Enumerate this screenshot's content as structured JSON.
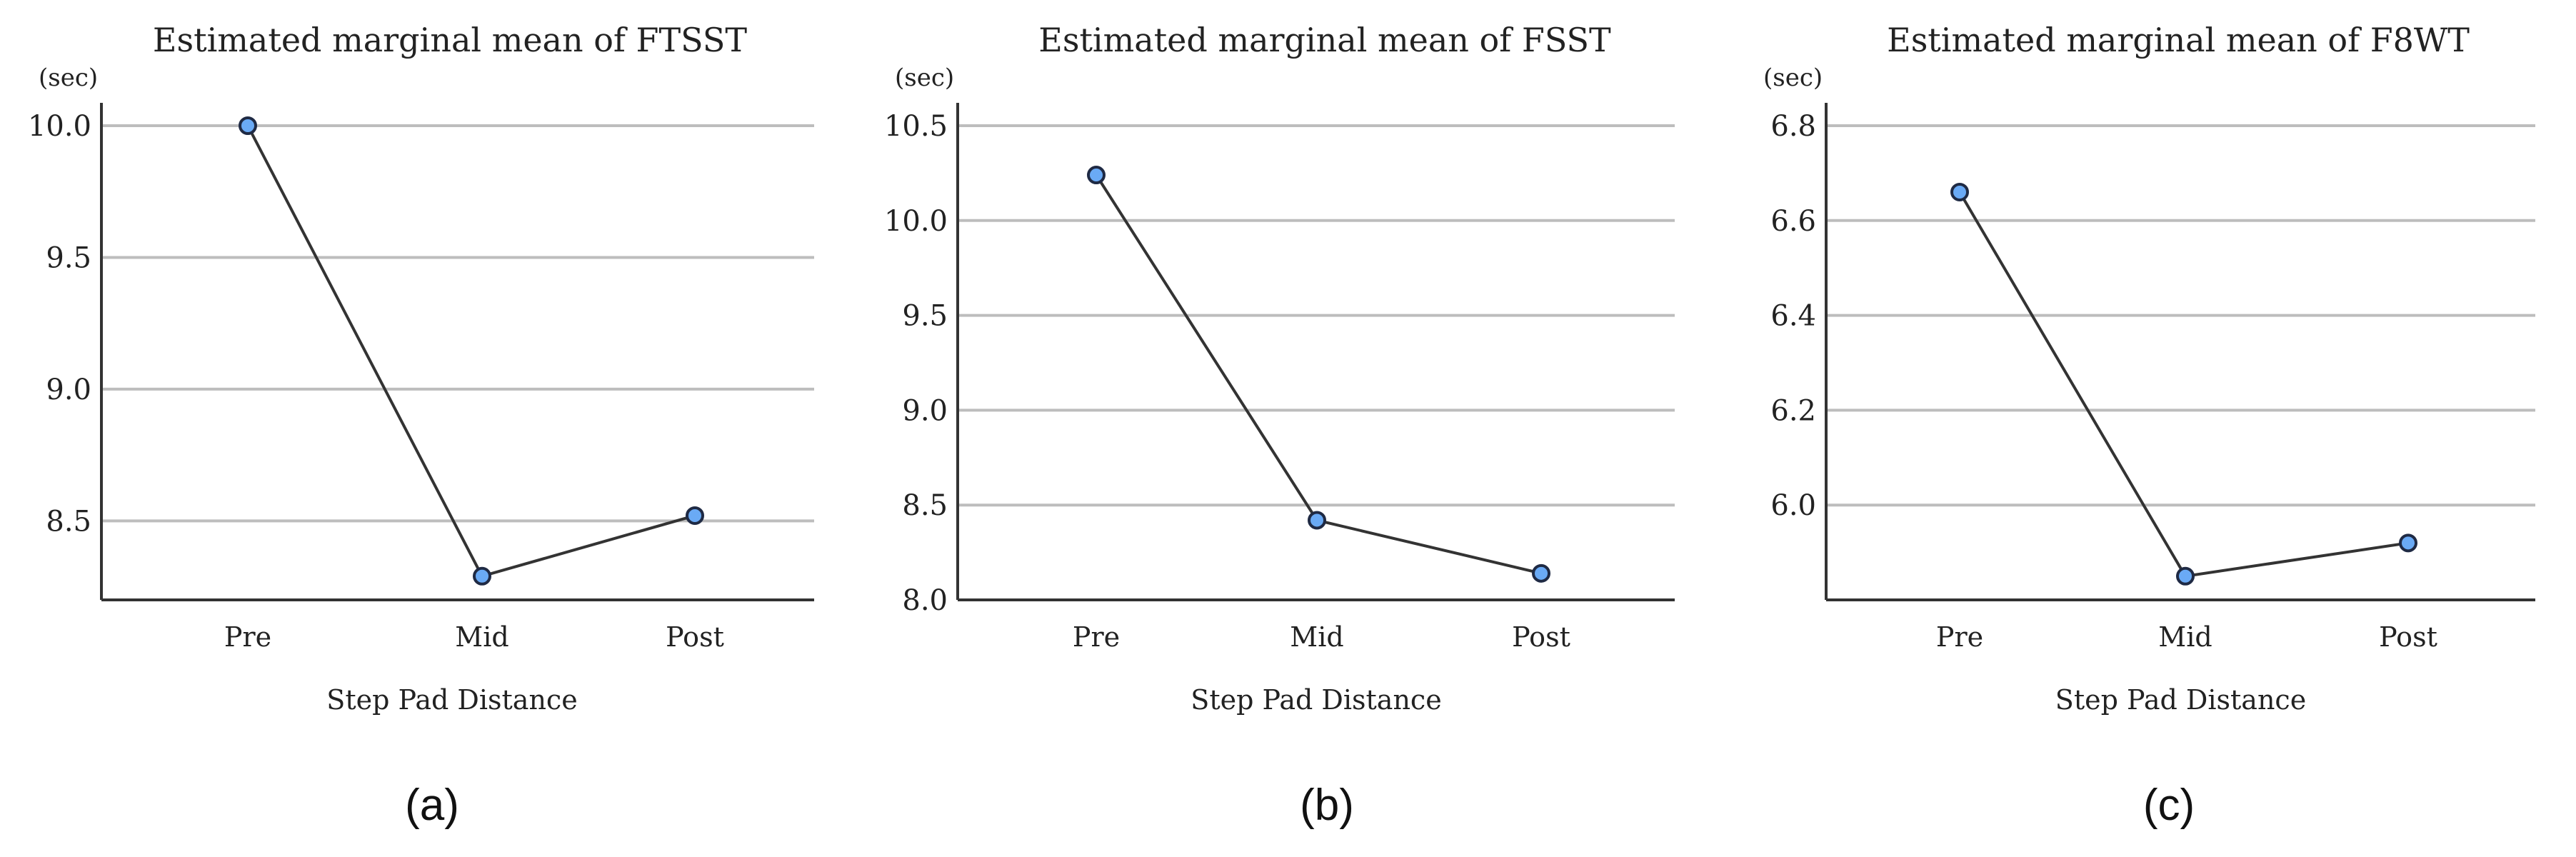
{
  "chart_data": [
    {
      "type": "line",
      "title": "Estimated marginal mean of FTSST",
      "unit": "(sec)",
      "xlabel": "Step Pad Distance",
      "caption": "(a)",
      "categories": [
        "Pre",
        "Mid",
        "Post"
      ],
      "values": [
        10.0,
        8.29,
        8.52
      ],
      "yticks": [
        8.5,
        9.0,
        9.5,
        10.0
      ],
      "ytick_labels": [
        "8.5",
        "9.0",
        "9.5",
        "10.0"
      ],
      "ylim": [
        8.2,
        10.1
      ],
      "grid": true,
      "series_color": "#6aaaf5"
    },
    {
      "type": "line",
      "title": "Estimated marginal mean of FSST",
      "unit": "(sec)",
      "xlabel": "Step Pad Distance",
      "caption": "(b)",
      "categories": [
        "Pre",
        "Mid",
        "Post"
      ],
      "values": [
        10.24,
        8.42,
        8.14
      ],
      "yticks": [
        8.0,
        8.5,
        9.0,
        9.5,
        10.0,
        10.5
      ],
      "ytick_labels": [
        "8.0",
        "8.5",
        "9.0",
        "9.5",
        "10.0",
        "10.5"
      ],
      "ylim": [
        8.0,
        10.5
      ],
      "grid": true,
      "series_color": "#6aaaf5"
    },
    {
      "type": "line",
      "title": "Estimated marginal mean of F8WT",
      "unit": "(sec)",
      "xlabel": "Step Pad Distance",
      "caption": "(c)",
      "categories": [
        "Pre",
        "Mid",
        "Post"
      ],
      "values": [
        6.66,
        5.85,
        5.92
      ],
      "yticks": [
        6.0,
        6.2,
        6.4,
        6.6,
        6.8
      ],
      "ytick_labels": [
        "6.0",
        "6.2",
        "6.4",
        "6.6",
        "6.8"
      ],
      "ylim": [
        5.8,
        6.8
      ],
      "grid": true,
      "series_color": "#6aaaf5"
    }
  ]
}
